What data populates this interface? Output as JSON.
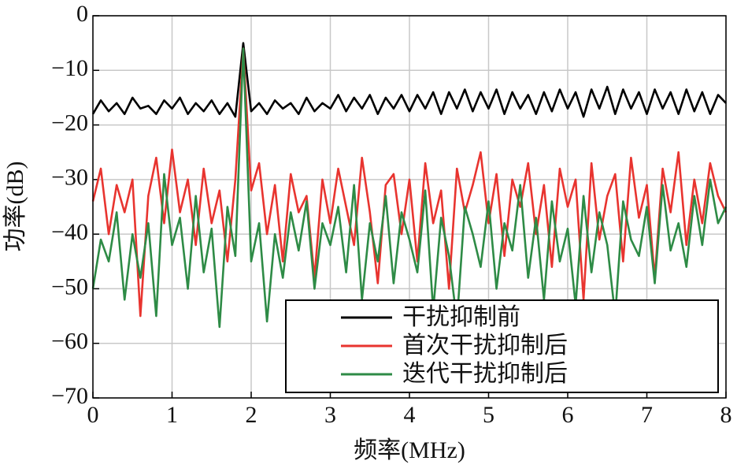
{
  "chart_data": {
    "type": "line",
    "xlabel": "频率(MHz)",
    "ylabel": "功率(dB)",
    "x": [
      0,
      0.1,
      0.2,
      0.3,
      0.4,
      0.5,
      0.6,
      0.7,
      0.8,
      0.9,
      1,
      1.1,
      1.2,
      1.3,
      1.4,
      1.5,
      1.6,
      1.7,
      1.8,
      1.9,
      2,
      2.1,
      2.2,
      2.3,
      2.4,
      2.5,
      2.6,
      2.7,
      2.8,
      2.9,
      3,
      3.1,
      3.2,
      3.3,
      3.4,
      3.5,
      3.6,
      3.7,
      3.8,
      3.9,
      4,
      4.1,
      4.2,
      4.3,
      4.4,
      4.5,
      4.6,
      4.7,
      4.8,
      4.9,
      5,
      5.1,
      5.2,
      5.3,
      5.4,
      5.5,
      5.6,
      5.7,
      5.8,
      5.9,
      6,
      6.1,
      6.2,
      6.3,
      6.4,
      6.5,
      6.6,
      6.7,
      6.8,
      6.9,
      7,
      7.1,
      7.2,
      7.3,
      7.4,
      7.5,
      7.6,
      7.7,
      7.8,
      7.9,
      8
    ],
    "series": [
      {
        "name": "干扰抑制前",
        "color": "#000000",
        "values": [
          -18,
          -15.5,
          -17.5,
          -16,
          -18,
          -15,
          -17,
          -16.5,
          -18,
          -15.5,
          -17,
          -15,
          -18,
          -16,
          -17.5,
          -15.5,
          -18,
          -16,
          -18.5,
          -5,
          -17.5,
          -16,
          -18,
          -15.5,
          -17,
          -16,
          -18,
          -15,
          -17.5,
          -16,
          -17,
          -14.5,
          -17.5,
          -15,
          -17,
          -14.5,
          -18,
          -15,
          -17,
          -14.5,
          -17.5,
          -14.5,
          -17,
          -14,
          -18,
          -14,
          -17,
          -13.5,
          -17.5,
          -14,
          -17,
          -13.5,
          -18,
          -14,
          -17,
          -14.5,
          -18,
          -14,
          -17.5,
          -13.5,
          -17,
          -14,
          -18.5,
          -13.5,
          -17,
          -13,
          -18,
          -13.5,
          -17,
          -14,
          -18,
          -13.5,
          -17,
          -14,
          -18,
          -13.5,
          -17.5,
          -14,
          -18,
          -14.5,
          -16
        ]
      },
      {
        "name": "首次干扰抑制后",
        "color": "#e8342f",
        "values": [
          -34,
          -28,
          -40,
          -31,
          -36,
          -30,
          -55,
          -33,
          -26,
          -38,
          -24.5,
          -36,
          -30,
          -42,
          -28,
          -38,
          -32,
          -45,
          -30,
          -6,
          -32,
          -27,
          -40,
          -31,
          -45,
          -29,
          -36,
          -33,
          -48,
          -30,
          -38,
          -28,
          -35,
          -42,
          -26,
          -36,
          -49,
          -31,
          -29,
          -40,
          -30,
          -45,
          -27,
          -38,
          -32,
          -50,
          -28,
          -36,
          -31,
          -25,
          -38,
          -29,
          -44,
          -30,
          -35,
          -27,
          -40,
          -31,
          -46,
          -28,
          -35,
          -30,
          -52,
          -27,
          -41,
          -33,
          -29,
          -45,
          -26,
          -37,
          -31,
          -48,
          -28,
          -36,
          -25,
          -42,
          -30,
          -38,
          -27,
          -33,
          -36
        ]
      },
      {
        "name": "迭代干扰抑制后",
        "color": "#2e8b46",
        "values": [
          -50,
          -41,
          -45,
          -36,
          -52,
          -40,
          -48,
          -38,
          -55,
          -29,
          -42,
          -37,
          -50,
          -33,
          -47,
          -39,
          -57,
          -35,
          -44,
          -6,
          -45,
          -38,
          -56,
          -40,
          -48,
          -36,
          -43,
          -34,
          -50,
          -38,
          -42,
          -35,
          -47,
          -31,
          -52,
          -38,
          -45,
          -33,
          -49,
          -36,
          -41,
          -47,
          -32,
          -54,
          -37,
          -44,
          -56,
          -35,
          -40,
          -46,
          -34,
          -50,
          -38,
          -43,
          -31,
          -48,
          -37,
          -52,
          -34,
          -45,
          -39,
          -53,
          -33,
          -47,
          -36,
          -42,
          -55,
          -34,
          -41,
          -44,
          -35,
          -49,
          -31,
          -43,
          -38,
          -46,
          -33,
          -42,
          -30,
          -38,
          -35
        ]
      }
    ],
    "xlim": [
      0,
      8
    ],
    "xticks": [
      0,
      1,
      2,
      3,
      4,
      5,
      6,
      7,
      8
    ],
    "ylim": [
      -70,
      0
    ],
    "yticks": [
      {
        "value": -70,
        "label": "−70"
      },
      {
        "value": -60,
        "label": "−60"
      },
      {
        "value": -50,
        "label": "−50"
      },
      {
        "value": -40,
        "label": "−40"
      },
      {
        "value": -30,
        "label": "−30"
      },
      {
        "value": -20,
        "label": "−20"
      },
      {
        "value": -10,
        "label": "−10"
      },
      0
    ],
    "grid": true,
    "legend": "lower right"
  }
}
